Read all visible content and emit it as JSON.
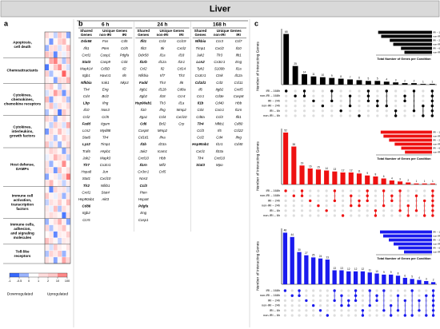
{
  "title": "Liver",
  "panel_labels": [
    "a",
    "b",
    "c"
  ],
  "chart_data": [
    {
      "type": "heatmap",
      "groups": [
        {
          "lines": [
            "Apoptosis,",
            "cell death"
          ],
          "rows": 4
        },
        {
          "lines": [
            "Chemoattractants"
          ],
          "rows": 4
        },
        {
          "lines": [
            "Cytokines,",
            "chemokines,",
            "chemokine receptors"
          ],
          "rows": 5
        },
        {
          "lines": [
            "Cytokines,",
            "interleukins,",
            "growth factors"
          ],
          "rows": 5
        },
        {
          "lines": [
            "Host defense,",
            "DAMPs"
          ],
          "rows": 6
        },
        {
          "lines": [
            "Immune cell",
            "activation,",
            "transcription",
            "factors"
          ],
          "rows": 5
        },
        {
          "lines": [
            "Immune cells,",
            "adhesion,",
            "and signaling",
            "molecules"
          ],
          "rows": 4
        },
        {
          "lines": [
            "Toll-like",
            "receptors"
          ],
          "rows": 3
        }
      ],
      "values": [
        [
          1.2,
          0.4,
          -0.3,
          2.1,
          0.8,
          -0.6
        ],
        [
          0.3,
          -0.7,
          0.2,
          1.5,
          3.0,
          0.1
        ],
        [
          -0.5,
          0.9,
          1.1,
          -0.2,
          0.4,
          2.6
        ],
        [
          2.4,
          1.3,
          -0.8,
          0.6,
          -0.1,
          0.9
        ],
        [
          0.1,
          4.5,
          12.0,
          0.7,
          -0.4,
          1.8
        ],
        [
          -0.9,
          0.3,
          2.2,
          8.0,
          0.5,
          -0.2
        ],
        [
          1.6,
          -0.4,
          0.2,
          0.3,
          22.0,
          0.6
        ],
        [
          0.4,
          0.2,
          -0.6,
          1.1,
          0.8,
          3.4
        ],
        [
          0.9,
          1.8,
          0.1,
          -0.3,
          0.6,
          0.2
        ],
        [
          -0.2,
          0.5,
          6.0,
          1.4,
          -0.7,
          0.8
        ],
        [
          3.1,
          -0.6,
          0.4,
          0.2,
          1.2,
          -0.4
        ],
        [
          0.6,
          2.5,
          -0.2,
          0.9,
          0.3,
          1.1
        ],
        [
          -0.4,
          0.1,
          0.8,
          -0.9,
          2.0,
          0.5
        ],
        [
          1.4,
          0.7,
          -0.5,
          0.3,
          0.9,
          0.2
        ],
        [
          0.2,
          -0.3,
          1.6,
          0.6,
          -0.2,
          4.2
        ],
        [
          -0.7,
          1.2,
          0.3,
          2.8,
          0.5,
          -0.1
        ],
        [
          0.5,
          0.8,
          -0.4,
          0.1,
          1.7,
          0.6
        ],
        [
          2.2,
          -0.2,
          0.6,
          -0.5,
          0.3,
          1.3
        ],
        [
          0.3,
          1.5,
          0.9,
          0.2,
          -0.6,
          0.7
        ],
        [
          -0.1,
          0.4,
          3.6,
          1.2,
          0.8,
          -0.3
        ],
        [
          0.8,
          -0.5,
          0.2,
          0.4,
          9.0,
          0.1
        ],
        [
          1.1,
          0.6,
          -0.7,
          2.3,
          0.2,
          0.9
        ],
        [
          -0.6,
          0.2,
          0.5,
          -0.2,
          1.4,
          15.0
        ],
        [
          0.7,
          3.3,
          0.1,
          0.6,
          -0.3,
          0.4
        ],
        [
          0.2,
          -0.8,
          1.3,
          0.5,
          0.7,
          -0.2
        ],
        [
          1.9,
          0.3,
          -0.1,
          0.8,
          -0.5,
          0.6
        ],
        [
          -0.3,
          0.9,
          0.4,
          1.7,
          0.2,
          2.9
        ],
        [
          0.6,
          -0.1,
          2.7,
          -0.4,
          1.0,
          0.3
        ],
        [
          0.4,
          1.1,
          0.6,
          0.2,
          -0.9,
          0.8
        ],
        [
          -0.5,
          0.2,
          0.9,
          3.8,
          0.4,
          -0.6
        ],
        [
          1.3,
          -0.4,
          0.3,
          0.7,
          2.4,
          0.1
        ],
        [
          0.1,
          0.6,
          -0.8,
          0.5,
          0.3,
          1.6
        ],
        [
          2.6,
          0.9,
          0.2,
          -0.3,
          0.6,
          0.4
        ],
        [
          0.5,
          -0.2,
          1.8,
          0.4,
          0.1,
          0.7
        ],
        [
          -0.4,
          1.4,
          0.6,
          2.0,
          -0.5,
          0.3
        ],
        [
          0.9,
          0.3,
          -0.6,
          0.2,
          5.0,
          1.2
        ]
      ],
      "legend_ticks": [
        -1,
        -0.5,
        0,
        1,
        2,
        10,
        100
      ],
      "legend_labels": [
        "Downregulated",
        "Upregulated"
      ]
    },
    {
      "type": "upset",
      "color": "#000000",
      "y_label": "Number of Interacting Genes",
      "inset_label": "Total Number of Genes per Condition",
      "set_names": [
        "IRI – 168h",
        "non-IRI – 168h",
        "IRI – 24h",
        "non-IRI – 24h",
        "IRI – 6h",
        "non-IRI – 6h"
      ],
      "set_sizes": [
        125,
        118,
        98,
        90,
        72,
        64
      ],
      "inset_xlim": [
        0,
        130
      ],
      "ylim": [
        0,
        75
      ],
      "values": [
        68,
        25,
        14,
        11,
        10,
        9,
        8,
        7,
        6,
        5,
        5,
        4,
        3,
        2,
        2,
        1,
        1
      ],
      "sets": [
        [
          0
        ],
        [
          1
        ],
        [
          0,
          1
        ],
        [
          2
        ],
        [
          3
        ],
        [
          0,
          2
        ],
        [
          4
        ],
        [
          1,
          3
        ],
        [
          5
        ],
        [
          0,
          1,
          2
        ],
        [
          2,
          3
        ],
        [
          0,
          3
        ],
        [
          4,
          5
        ],
        [
          1,
          2
        ],
        [
          0,
          4
        ],
        [
          3,
          5
        ],
        [
          0,
          1,
          2,
          3,
          4,
          5
        ]
      ]
    },
    {
      "type": "upset",
      "color": "#ee1111",
      "y_label": "Number of Interacting Genes",
      "inset_label": "Total Number of Genes per Condition",
      "set_names": [
        "IRI – 168h",
        "non-IRI – 168h",
        "IRI – 24h",
        "non-IRI – 24h",
        "IRI – 6h",
        "non-IRI – 6h"
      ],
      "set_sizes": [
        110,
        104,
        92,
        80,
        66,
        58
      ],
      "inset_xlim": [
        0,
        120
      ],
      "ylim": [
        0,
        56
      ],
      "values": [
        52,
        38,
        19,
        16,
        15,
        14,
        13,
        12,
        12,
        11,
        9,
        8,
        6,
        4,
        3,
        2,
        1,
        1,
        1
      ],
      "sets": [
        [
          0
        ],
        [
          1
        ],
        [
          0,
          1
        ],
        [
          2
        ],
        [
          3
        ],
        [
          4
        ],
        [
          0,
          2
        ],
        [
          5
        ],
        [
          1,
          3
        ],
        [
          2,
          3
        ],
        [
          0,
          1,
          2
        ],
        [
          4,
          5
        ],
        [
          0,
          3
        ],
        [
          1,
          2
        ],
        [
          0,
          4
        ],
        [
          3,
          5
        ],
        [
          1,
          4
        ],
        [
          2,
          5
        ],
        [
          0,
          1,
          2,
          3,
          4,
          5
        ]
      ]
    },
    {
      "type": "upset",
      "color": "#1a1aee",
      "y_label": "Number of Interacting Genes",
      "inset_label": "Total Number of Genes per Condition",
      "set_names": [
        "IRI – 168h",
        "non-IRI – 168h",
        "IRI – 24h",
        "non-IRI – 24h",
        "IRI – 6h",
        "non-IRI – 6h"
      ],
      "set_sizes": [
        130,
        122,
        108,
        96,
        84,
        70
      ],
      "inset_xlim": [
        0,
        140
      ],
      "ylim": [
        0,
        52
      ],
      "values": [
        48,
        44,
        30,
        27,
        25,
        24,
        23,
        13,
        13,
        12,
        12,
        12,
        11,
        10,
        9,
        9,
        8,
        6,
        5,
        4,
        3,
        2
      ],
      "sets": [
        [
          0
        ],
        [
          1
        ],
        [
          0,
          1
        ],
        [
          2
        ],
        [
          3
        ],
        [
          4
        ],
        [
          5
        ],
        [
          0,
          2
        ],
        [
          1,
          3
        ],
        [
          2,
          3
        ],
        [
          0,
          1,
          2
        ],
        [
          4,
          5
        ],
        [
          0,
          3
        ],
        [
          1,
          2
        ],
        [
          0,
          4
        ],
        [
          3,
          5
        ],
        [
          1,
          4
        ],
        [
          2,
          5
        ],
        [
          0,
          5
        ],
        [
          2,
          4
        ],
        [
          1,
          5
        ],
        [
          0,
          1,
          2,
          3,
          4,
          5
        ]
      ]
    }
  ],
  "table": {
    "unique_header": "Unique Genes",
    "timepoints": [
      {
        "label": "6 h",
        "shared_header": [
          "Shared",
          "Genes"
        ],
        "sub": [
          "non-IRI",
          "IRI"
        ],
        "columns": [
          [
            "Ddx58",
            "Ifit1",
            "Cxcl1",
            "Stat3",
            "Mapk14",
            "Itgb1",
            "Nfkbia",
            "Tlr4",
            "Cd4",
            "Lbp",
            "Il10",
            "Ccl2",
            "Fadd",
            "Lcn2",
            "Stat6",
            "Lyz2",
            "Traf6",
            "Jak2",
            "Tlr7",
            "Hspa8",
            "Stat1",
            "Tlr2",
            "Cxcl1",
            "Hsp90ab1",
            "Cd86",
            "Itgb2",
            "Ccr5"
          ],
          [
            "Fos",
            "Pten",
            "Casp1",
            "Casp9",
            "Cd3D",
            "Havcr1",
            "Irak1",
            "Eng",
            "Bcl2",
            "Ifng",
            "Nos3",
            "Ccl5",
            "Itgam",
            "Myd88",
            "Tlr4",
            "Timp1",
            "Hspb1",
            "Mapk3",
            "Cx3cr1",
            "Jun",
            "Cxcl10",
            "Nfkb1",
            "Stat4",
            "Akt3"
          ],
          [
            "Cd5",
            "Ccl5",
            "Pdgfa",
            "Cd4",
            "Il2",
            "Il6",
            "Nkp3"
          ]
        ]
      },
      {
        "label": "24 h",
        "shared_header": [
          "Shared",
          "Genes"
        ],
        "sub": [
          "non-IRI",
          "IRI"
        ],
        "columns": [
          [
            "Ifit1",
            "Ifit3",
            "Ddx58",
            "Il1rb",
            "Ccl2",
            "Nfkbia",
            "Fadd",
            "Itgb1",
            "Itgb2",
            "Hsp90ab1",
            "Il10",
            "Itga1",
            "Cd6",
            "Casp8",
            "Cd1d1",
            "Il1b",
            "Jak2",
            "Cxcl10",
            "Il1rn",
            "Cx3cr1",
            "Nos3",
            "Ccl3",
            "Pten",
            "Hspa8",
            "Pdgfa",
            "Eng",
            "Casp1"
          ],
          [
            "Ccl3",
            "Itk",
            "Il1a",
            "Il12a",
            "Il2",
            "Irf7",
            "Tlr4",
            "Il12b",
            "Il18",
            "Tlr3",
            "Ifng",
            "Ccl4",
            "Bcl2",
            "Mmp2",
            "Ifna",
            "Il23a",
            "Icam1",
            "Hbb",
            "Mif2",
            "Ccl5"
          ],
          [
            "Ccl19",
            "Cxcl2",
            "Il18",
            "Il1r1",
            "Cd14",
            "Tlr3",
            "Il6",
            "Cd8a",
            "Ccr4",
            "Il1a",
            "Mmp2",
            "Cxcl10",
            "Crp"
          ]
        ]
      },
      {
        "label": "168 h",
        "shared_header": [
          "Shared",
          "Genes"
        ],
        "sub": [
          "non-IRI",
          "IRI"
        ],
        "columns": [
          [
            "Nfkbia",
            "Timp1",
            "Jak2",
            "Lcn2",
            "Tyk2",
            "Cx3cr1",
            "Cd1d1",
            "Il6",
            "Ccr1",
            "Il1b",
            "Cd4",
            "Cd8a",
            "Tlr4",
            "Ccl3",
            "Ccl2",
            "Hsp90ab1",
            "Cxcl1",
            "Tlr4",
            "Stat3"
          ],
          [
            "Ccr3",
            "Cxcl2",
            "Tlr3",
            "Cx3cr1",
            "S100b",
            "Ctsk",
            "Cd3",
            "Itgb2",
            "Cd3e",
            "Cd40",
            "Cxcr1",
            "Ccl3",
            "Nfkb1",
            "Il5",
            "Cd4",
            "Il1r1",
            "Il33a",
            "Cxcl10",
            "Mpo"
          ],
          [
            "Ccl7",
            "Il10",
            "Ifit1",
            "Eng",
            "Il1a",
            "Il12a",
            "Ccl11",
            "Cxcl5",
            "Casp8",
            "Hbb",
            "Il1rn",
            "Ifit1",
            "Cd80",
            "Ccl22",
            "Ifng",
            "Cd40"
          ]
        ]
      }
    ]
  }
}
